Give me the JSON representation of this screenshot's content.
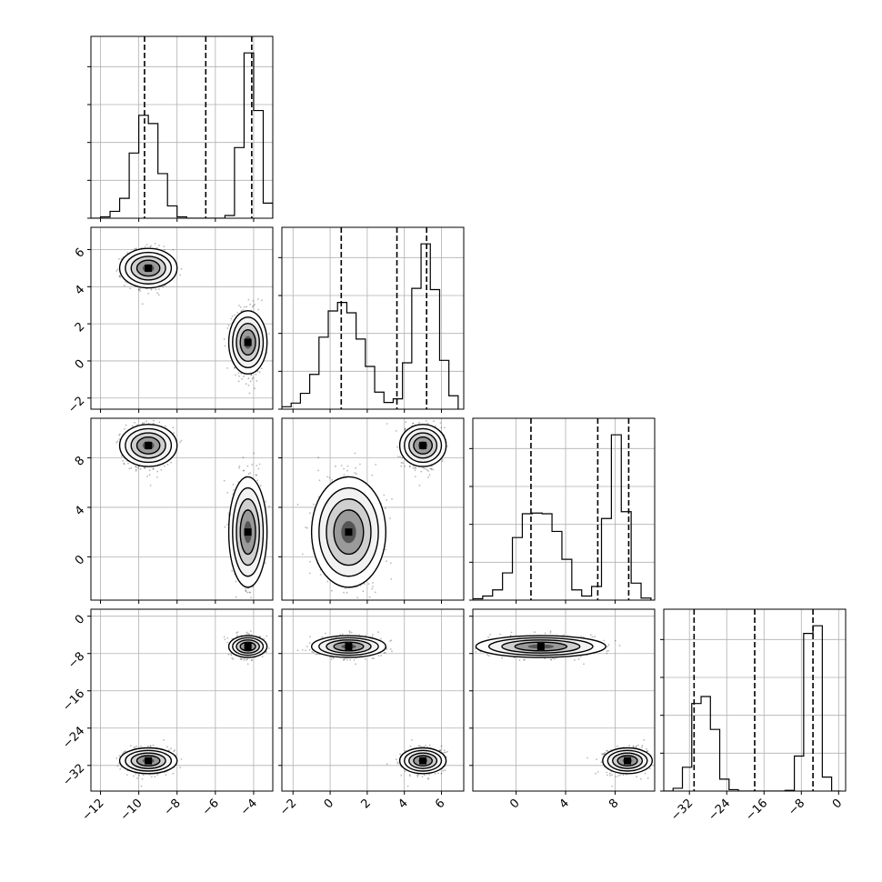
{
  "chart_data": {
    "type": "corner",
    "n_params": 4,
    "labels": [
      "",
      "",
      "",
      ""
    ],
    "ranges": [
      [
        -12.5,
        -3.0
      ],
      [
        -2.6,
        7.2
      ],
      [
        -3.5,
        11.2
      ],
      [
        -37.5,
        1.5
      ]
    ],
    "ticks": [
      [
        -12,
        -10,
        -8,
        -6,
        -4
      ],
      [
        -2,
        0,
        2,
        4,
        6
      ],
      [
        0,
        4,
        8
      ],
      [
        -32,
        -24,
        -16,
        -8,
        0
      ]
    ],
    "tick_labels": [
      [
        "−12",
        "−10",
        "−8",
        "−6",
        "−4"
      ],
      [
        "−2",
        "0",
        "2",
        "4",
        "6"
      ],
      [
        "0",
        "4",
        "8"
      ],
      [
        "−32",
        "−24",
        "−16",
        "−8",
        "0"
      ]
    ],
    "quantiles": [
      [
        -9.7,
        -6.5,
        -4.1
      ],
      [
        0.6,
        3.6,
        5.2
      ],
      [
        1.2,
        6.6,
        9.1
      ],
      [
        -31.0,
        -18.0,
        -5.5
      ]
    ],
    "modes": [
      {
        "weight": 0.5,
        "mean": [
          -9.5,
          5.0,
          9.0,
          -31.0
        ],
        "sd": [
          0.6,
          0.5,
          0.8,
          1.3
        ]
      },
      {
        "weight": 0.5,
        "mean": [
          -4.3,
          1.0,
          2.0,
          -6.5
        ],
        "sd": [
          0.4,
          0.8,
          2.1,
          1.1
        ]
      }
    ],
    "histograms": [
      {
        "edges": [
          -12.5,
          -12.0,
          -11.5,
          -11.0,
          -10.5,
          -10.0,
          -9.5,
          -9.0,
          -8.5,
          -8.0,
          -7.5,
          -7.0,
          -6.5,
          -6.0,
          -5.5,
          -5.0,
          -4.5,
          -4.0,
          -3.5,
          -3.0
        ],
        "counts": [
          0,
          2,
          10,
          29,
          95,
          150,
          138,
          65,
          18,
          2,
          0,
          0,
          0,
          0,
          4,
          103,
          241,
          157,
          22
        ]
      },
      {
        "edges": [
          -2.6,
          -2.1,
          -1.6,
          -1.1,
          -0.6,
          -0.1,
          0.4,
          0.9,
          1.4,
          1.9,
          2.4,
          2.9,
          3.4,
          3.9,
          4.4,
          4.9,
          5.4,
          5.9,
          6.4,
          6.9
        ],
        "counts": [
          4,
          10,
          26,
          57,
          118,
          161,
          175,
          158,
          115,
          70,
          28,
          11,
          17,
          76,
          198,
          271,
          196,
          80,
          22
        ]
      },
      {
        "edges": [
          -3.5,
          -2.7,
          -1.9,
          -1.1,
          -0.3,
          0.5,
          1.3,
          2.1,
          2.9,
          3.7,
          4.5,
          5.3,
          6.1,
          6.9,
          7.7,
          8.5,
          9.3,
          10.1,
          10.9
        ],
        "counts": [
          2,
          6,
          15,
          40,
          92,
          127,
          128,
          127,
          101,
          60,
          15,
          6,
          20,
          120,
          243,
          130,
          25,
          3
        ]
      },
      {
        "edges": [
          -37.5,
          -35.5,
          -33.5,
          -31.5,
          -29.5,
          -27.5,
          -25.5,
          -23.5,
          -21.5,
          -19.5,
          -17.5,
          -15.5,
          -13.5,
          -11.5,
          -9.5,
          -7.5,
          -5.5,
          -3.5,
          -1.5,
          0.5
        ],
        "counts": [
          0,
          4,
          34,
          125,
          135,
          88,
          17,
          2,
          0,
          0,
          0,
          0,
          0,
          1,
          50,
          225,
          236,
          20,
          0
        ]
      }
    ],
    "contour_levels": "1σ, 1.5σ, 2σ, 2.5σ",
    "grid": true
  }
}
